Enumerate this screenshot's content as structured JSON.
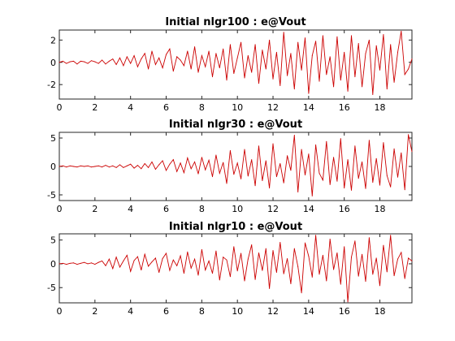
{
  "colors": {
    "line": "#cc0000",
    "axes": "#262626",
    "background": "#ffffff"
  },
  "chart_data": [
    {
      "type": "line",
      "title": "Initial nlgr100 : e@Vout",
      "xlabel": "",
      "ylabel": "",
      "xlim": [
        0,
        19.8
      ],
      "ylim": [
        -3.3,
        2.9
      ],
      "xticks": [
        0,
        2,
        4,
        6,
        8,
        10,
        12,
        14,
        16,
        18
      ],
      "yticks": [
        -2,
        0,
        2
      ],
      "grid": false,
      "series": [
        {
          "color": "#cc0000",
          "x": [
            0,
            0.2,
            0.4,
            0.6,
            0.8,
            1.0,
            1.2,
            1.4,
            1.6,
            1.8,
            2.0,
            2.2,
            2.4,
            2.6,
            2.8,
            3.0,
            3.2,
            3.4,
            3.6,
            3.8,
            4.0,
            4.2,
            4.4,
            4.6,
            4.8,
            5.0,
            5.2,
            5.4,
            5.6,
            5.8,
            6.0,
            6.2,
            6.4,
            6.6,
            6.8,
            7.0,
            7.2,
            7.4,
            7.6,
            7.8,
            8.0,
            8.2,
            8.4,
            8.6,
            8.8,
            9.0,
            9.2,
            9.4,
            9.6,
            9.8,
            10.0,
            10.2,
            10.4,
            10.6,
            10.8,
            11.0,
            11.2,
            11.4,
            11.6,
            11.8,
            12.0,
            12.2,
            12.4,
            12.6,
            12.8,
            13.0,
            13.2,
            13.4,
            13.6,
            13.8,
            14.0,
            14.2,
            14.4,
            14.6,
            14.8,
            15.0,
            15.2,
            15.4,
            15.6,
            15.8,
            16.0,
            16.2,
            16.4,
            16.6,
            16.8,
            17.0,
            17.2,
            17.4,
            17.6,
            17.8,
            18.0,
            18.2,
            18.4,
            18.6,
            18.8,
            19.0,
            19.2,
            19.4,
            19.6,
            19.8
          ],
          "y": [
            0,
            0.1,
            -0.1,
            0.05,
            0.1,
            -0.15,
            0.1,
            0.05,
            -0.1,
            0.15,
            0.05,
            -0.1,
            0.2,
            -0.15,
            0.1,
            0.3,
            -0.2,
            0.4,
            -0.3,
            0.5,
            -0.1,
            0.6,
            -0.4,
            0.3,
            0.8,
            -0.6,
            1.0,
            -0.2,
            0.4,
            -0.5,
            0.7,
            1.2,
            -0.8,
            0.5,
            0.2,
            -0.3,
            1.0,
            -0.6,
            1.4,
            -0.9,
            0.6,
            -0.4,
            1.0,
            -1.3,
            0.8,
            -0.5,
            1.2,
            -1.6,
            1.6,
            -1.0,
            0.4,
            1.8,
            -1.4,
            0.6,
            -0.9,
            1.6,
            -1.9,
            1.1,
            -0.6,
            2.0,
            -1.5,
            0.9,
            -2.1,
            2.7,
            -1.2,
            0.8,
            -2.4,
            1.8,
            -0.7,
            2.2,
            -2.8,
            0.6,
            1.9,
            -1.7,
            2.4,
            -1.1,
            0.5,
            -2.2,
            2.3,
            -1.6,
            0.9,
            -2.6,
            2.4,
            -1.3,
            1.7,
            -2.2,
            0.8,
            2.0,
            -2.9,
            1.5,
            -0.7,
            2.5,
            -2.4,
            1.6,
            -1.8,
            0.9,
            2.8,
            -1.1,
            -0.6,
            0.3
          ]
        }
      ]
    },
    {
      "type": "line",
      "title": "Initial nlgr30 : e@Vout",
      "xlabel": "",
      "ylabel": "",
      "xlim": [
        0,
        19.8
      ],
      "ylim": [
        -6,
        6
      ],
      "xticks": [
        0,
        2,
        4,
        6,
        8,
        10,
        12,
        14,
        16,
        18
      ],
      "yticks": [
        -5,
        0,
        5
      ],
      "grid": false,
      "series": [
        {
          "color": "#cc0000",
          "x": [
            0,
            0.2,
            0.4,
            0.6,
            0.8,
            1.0,
            1.2,
            1.4,
            1.6,
            1.8,
            2.0,
            2.2,
            2.4,
            2.6,
            2.8,
            3.0,
            3.2,
            3.4,
            3.6,
            3.8,
            4.0,
            4.2,
            4.4,
            4.6,
            4.8,
            5.0,
            5.2,
            5.4,
            5.6,
            5.8,
            6.0,
            6.2,
            6.4,
            6.6,
            6.8,
            7.0,
            7.2,
            7.4,
            7.6,
            7.8,
            8.0,
            8.2,
            8.4,
            8.6,
            8.8,
            9.0,
            9.2,
            9.4,
            9.6,
            9.8,
            10.0,
            10.2,
            10.4,
            10.6,
            10.8,
            11.0,
            11.2,
            11.4,
            11.6,
            11.8,
            12.0,
            12.2,
            12.4,
            12.6,
            12.8,
            13.0,
            13.2,
            13.4,
            13.6,
            13.8,
            14.0,
            14.2,
            14.4,
            14.6,
            14.8,
            15.0,
            15.2,
            15.4,
            15.6,
            15.8,
            16.0,
            16.2,
            16.4,
            16.6,
            16.8,
            17.0,
            17.2,
            17.4,
            17.6,
            17.8,
            18.0,
            18.2,
            18.4,
            18.6,
            18.8,
            19.0,
            19.2,
            19.4,
            19.6,
            19.8
          ],
          "y": [
            0,
            0.1,
            -0.1,
            0.1,
            0,
            -0.1,
            0.1,
            0,
            0.1,
            -0.1,
            0,
            0.1,
            -0.1,
            0.2,
            -0.1,
            0.1,
            -0.2,
            0.3,
            -0.2,
            0.1,
            0.4,
            -0.3,
            0.2,
            -0.4,
            0.5,
            -0.2,
            0.8,
            -0.5,
            0.3,
            1.0,
            -0.7,
            0.4,
            1.2,
            -0.9,
            0.6,
            -1.1,
            1.5,
            -0.4,
            0.8,
            -1.3,
            1.6,
            -0.6,
            1.1,
            -1.8,
            2.0,
            -1.2,
            0.7,
            -3.0,
            2.8,
            -1.4,
            0.6,
            -2.2,
            3.0,
            -1.7,
            1.2,
            -3.4,
            3.6,
            -2.5,
            1.0,
            -3.8,
            4.0,
            -1.8,
            0.5,
            -2.9,
            1.9,
            -0.7,
            5.5,
            -4.5,
            3.0,
            -1.5,
            2.2,
            -5.2,
            3.8,
            -1.2,
            -2.4,
            4.4,
            -3.2,
            1.6,
            -2.6,
            4.9,
            -3.8,
            1.2,
            -4.2,
            3.6,
            -2.1,
            0.8,
            -3.9,
            4.6,
            -2.8,
            1.4,
            -3.3,
            4.2,
            -1.6,
            -3.6,
            3.1,
            -1.9,
            2.4,
            -4.1,
            5.6,
            2.6
          ]
        }
      ]
    },
    {
      "type": "line",
      "title": "Initial nlgr10 : e@Vout",
      "xlabel": "",
      "ylabel": "",
      "xlim": [
        0,
        19.8
      ],
      "ylim": [
        -8.2,
        6.3
      ],
      "xticks": [
        0,
        2,
        4,
        6,
        8,
        10,
        12,
        14,
        16,
        18
      ],
      "yticks": [
        -5,
        0,
        5
      ],
      "grid": false,
      "series": [
        {
          "color": "#cc0000",
          "x": [
            0,
            0.2,
            0.4,
            0.6,
            0.8,
            1.0,
            1.2,
            1.4,
            1.6,
            1.8,
            2.0,
            2.2,
            2.4,
            2.6,
            2.8,
            3.0,
            3.2,
            3.4,
            3.6,
            3.8,
            4.0,
            4.2,
            4.4,
            4.6,
            4.8,
            5.0,
            5.2,
            5.4,
            5.6,
            5.8,
            6.0,
            6.2,
            6.4,
            6.6,
            6.8,
            7.0,
            7.2,
            7.4,
            7.6,
            7.8,
            8.0,
            8.2,
            8.4,
            8.6,
            8.8,
            9.0,
            9.2,
            9.4,
            9.6,
            9.8,
            10.0,
            10.2,
            10.4,
            10.6,
            10.8,
            11.0,
            11.2,
            11.4,
            11.6,
            11.8,
            12.0,
            12.2,
            12.4,
            12.6,
            12.8,
            13.0,
            13.2,
            13.4,
            13.6,
            13.8,
            14.0,
            14.2,
            14.4,
            14.6,
            14.8,
            15.0,
            15.2,
            15.4,
            15.6,
            15.8,
            16.0,
            16.2,
            16.4,
            16.6,
            16.8,
            17.0,
            17.2,
            17.4,
            17.6,
            17.8,
            18.0,
            18.2,
            18.4,
            18.6,
            18.8,
            19.0,
            19.2,
            19.4,
            19.6,
            19.8
          ],
          "y": [
            0,
            0.1,
            -0.1,
            0.1,
            0.2,
            -0.1,
            0.1,
            0.3,
            0,
            0.2,
            -0.1,
            0.3,
            0.6,
            -0.4,
            1.0,
            -1.0,
            1.4,
            -0.7,
            0.6,
            1.8,
            -1.6,
            0.7,
            1.5,
            -1.3,
            2.0,
            -0.5,
            0.4,
            1.2,
            -1.8,
            1.1,
            2.2,
            -1.4,
            0.8,
            -0.4,
            1.7,
            -2.0,
            2.5,
            -0.9,
            1.0,
            -2.4,
            3.0,
            -1.3,
            0.6,
            -2.0,
            2.7,
            -3.4,
            1.4,
            0.8,
            -2.7,
            3.6,
            -1.5,
            2.2,
            -3.6,
            1.0,
            4.0,
            -3.3,
            2.3,
            -1.4,
            3.2,
            -5.2,
            2.8,
            -1.8,
            4.5,
            -2.1,
            1.1,
            -4.2,
            3.2,
            -0.6,
            -6.1,
            4.4,
            1.6,
            -2.8,
            6.0,
            -2.2,
            1.8,
            -3.6,
            5.2,
            -1.2,
            2.3,
            -4.3,
            3.6,
            -8.0,
            1.4,
            4.8,
            -2.6,
            2.0,
            -3.7,
            5.5,
            -2.2,
            1.2,
            -4.6,
            3.9,
            -1.7,
            6.0,
            -2.5,
            1.0,
            2.4,
            -3.1,
            1.2,
            0.6
          ]
        }
      ]
    }
  ]
}
